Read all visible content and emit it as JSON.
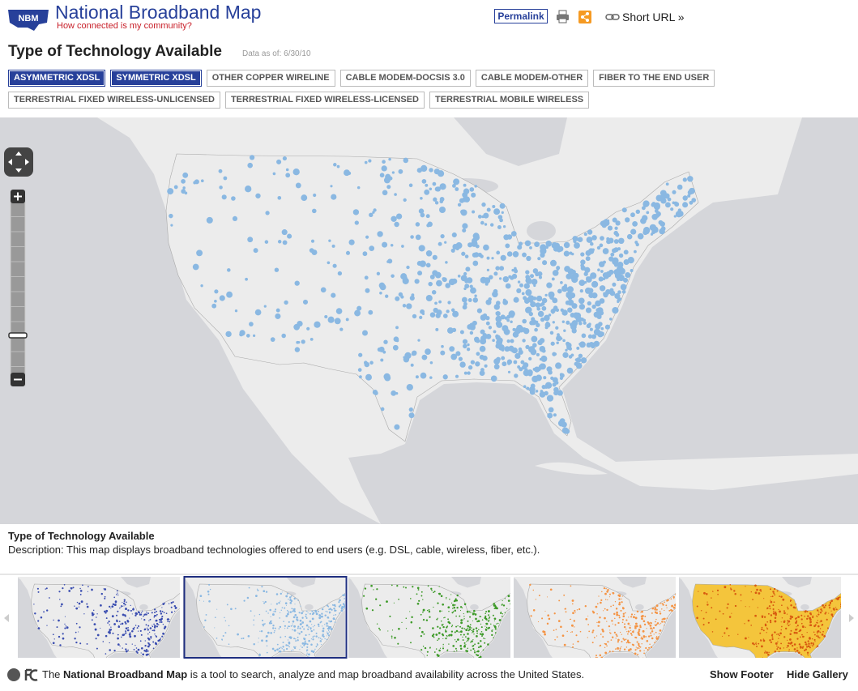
{
  "header": {
    "logo": "NBM",
    "title": "National Broadband Map",
    "tagline": "How connected is my community?",
    "permalink": "Permalink",
    "short_url": "Short URL »"
  },
  "map_panel": {
    "title": "Type of Technology Available",
    "data_as_of": "Data as of: 6/30/10",
    "technologies": [
      [
        {
          "label": "ASYMMETRIC XDSL",
          "selected": true
        },
        {
          "label": "SYMMETRIC XDSL",
          "selected": true
        },
        {
          "label": "OTHER COPPER WIRELINE",
          "selected": false
        },
        {
          "label": "CABLE MODEM-DOCSIS 3.0",
          "selected": false
        },
        {
          "label": "CABLE MODEM-OTHER",
          "selected": false
        },
        {
          "label": "FIBER TO THE END USER",
          "selected": false
        }
      ],
      [
        {
          "label": "TERRESTRIAL FIXED WIRELESS-UNLICENSED",
          "selected": false
        },
        {
          "label": "TERRESTRIAL FIXED WIRELESS-LICENSED",
          "selected": false
        },
        {
          "label": "TERRESTRIAL MOBILE WIRELESS",
          "selected": false
        }
      ]
    ]
  },
  "description": {
    "title": "Type of Technology Available",
    "text": "Description: This map displays broadband technologies offered to end users (e.g. DSL, cable, wireless, fiber, etc.)."
  },
  "footer": {
    "intro": "The",
    "site_name": "National Broadband Map",
    "text": "is a tool to search, analyze and map broadband availability across the United States.",
    "show_footer": "Show Footer",
    "hide_gallery": "Hide Gallery"
  }
}
